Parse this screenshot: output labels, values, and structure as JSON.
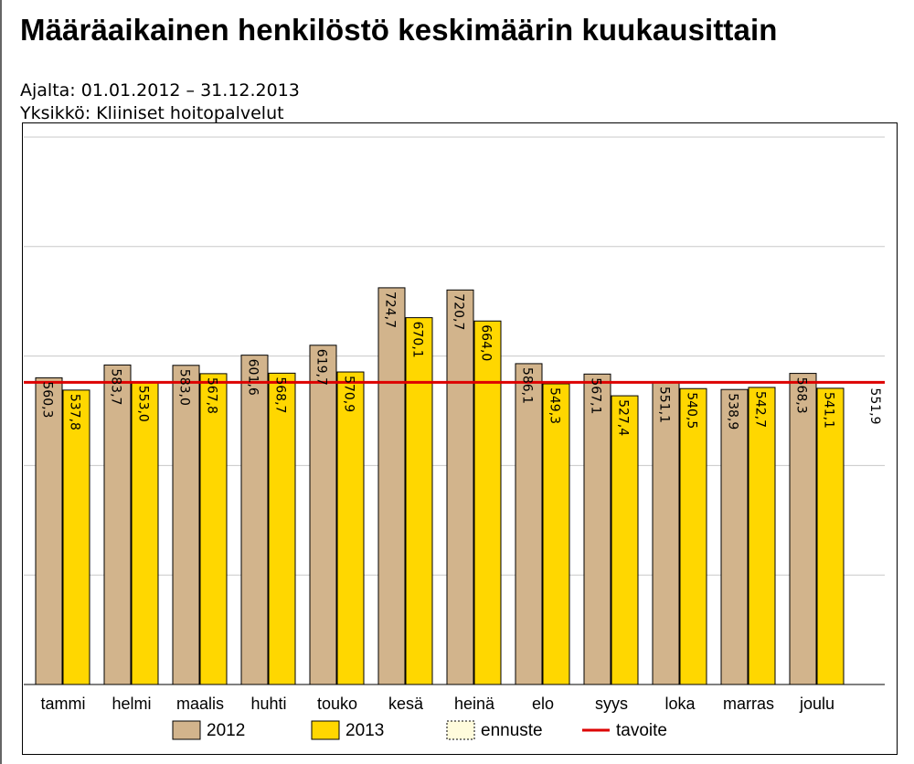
{
  "title": "Määräaikainen henkilöstö keskimäärin kuukausittain",
  "period": "Ajalta: 01.01.2012 – 31.12.2013",
  "unit": "Yksikkö: Kliiniset hoitopalvelut",
  "colors": {
    "s2012": "#d2b48c",
    "s2013": "#ffd700",
    "forecast": "#fffbdc",
    "target": "#dd0000",
    "grid": "#c8c8c8"
  },
  "chart_data": {
    "type": "bar",
    "categories": [
      "tammi",
      "helmi",
      "maalis",
      "huhti",
      "touko",
      "kesä",
      "heinä",
      "elo",
      "syys",
      "loka",
      "marras",
      "joulu"
    ],
    "series": [
      {
        "name": "2012",
        "values": [
          560.3,
          583.7,
          583.0,
          601.6,
          619.7,
          724.7,
          720.7,
          586.1,
          567.1,
          551.1,
          538.9,
          568.3
        ],
        "labels": [
          "560,3",
          "583,7",
          "583,0",
          "601,6",
          "619,7",
          "724,7",
          "720,7",
          "586,1",
          "567,1",
          "551,1",
          "538,9",
          "568,3"
        ]
      },
      {
        "name": "2013",
        "values": [
          537.8,
          553.0,
          567.8,
          568.7,
          570.9,
          670.1,
          664.0,
          549.3,
          527.4,
          540.5,
          542.7,
          541.1
        ],
        "labels": [
          "537,8",
          "553,0",
          "567,8",
          "568,7",
          "570,9",
          "670,1",
          "664,0",
          "549,3",
          "527,4",
          "540,5",
          "542,7",
          "541,1"
        ]
      }
    ],
    "legend": [
      "2012",
      "2013",
      "ennuste",
      "tavoite"
    ],
    "target": {
      "name": "tavoite",
      "value": 551.9,
      "label": "551,9"
    },
    "ylim": [
      0,
      1000
    ],
    "grid": true,
    "axis_labels_shown": false
  }
}
